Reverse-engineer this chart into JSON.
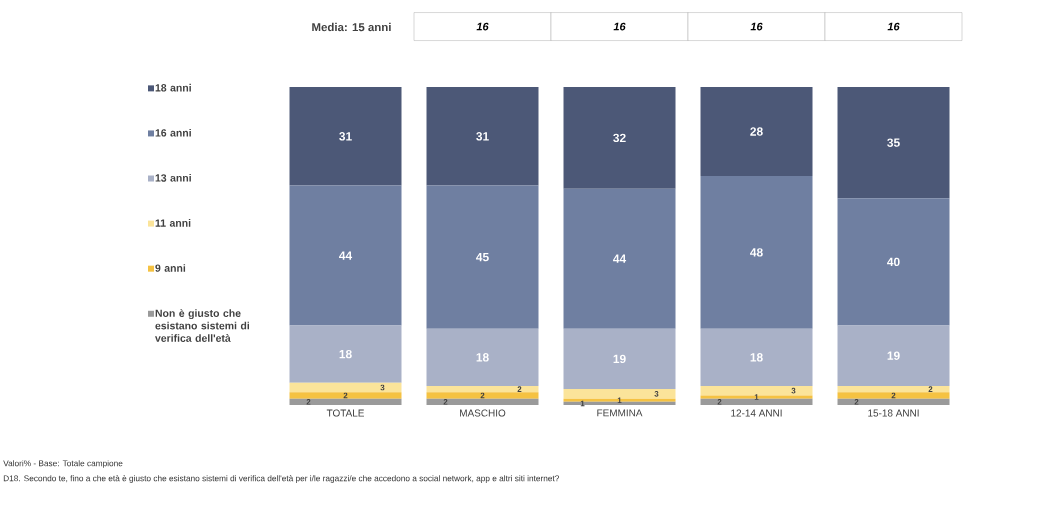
{
  "chart_data": {
    "type": "bar",
    "stacked": true,
    "legend": "left",
    "tick_labels": "x",
    "categories": [
      "TOTALE",
      "MASCHIO",
      "FEMMINA",
      "12-14 ANNI",
      "15-18 ANNI"
    ],
    "series": [
      {
        "name": "Non è giusto che esistano sistemi di verifica dell'età",
        "color": "#9a9a9a",
        "values": [
          2,
          2,
          1,
          2,
          2
        ],
        "value_labels": [
          "2",
          "2",
          "1",
          "2",
          "2"
        ]
      },
      {
        "name": "9 anni",
        "color": "#f5c242",
        "values": [
          2,
          2,
          1,
          1,
          2
        ],
        "value_labels": [
          "2",
          "2",
          "1",
          "1",
          "2"
        ]
      },
      {
        "name": "11 anni",
        "color": "#fbe49a",
        "values": [
          3,
          2,
          3,
          3,
          2
        ],
        "value_labels": [
          "3",
          "2",
          "3",
          "3",
          "2"
        ]
      },
      {
        "name": "13 anni",
        "color": "#a9b1c7",
        "values": [
          18,
          18,
          19,
          18,
          19
        ],
        "value_labels": [
          "18",
          "18",
          "19",
          "18",
          "19"
        ]
      },
      {
        "name": "16 anni",
        "color": "#6f7fa1",
        "values": [
          44,
          45,
          44,
          48,
          40
        ],
        "value_labels": [
          "44",
          "45",
          "44",
          "48",
          "40"
        ]
      },
      {
        "name": "18 anni",
        "color": "#4c5877",
        "values": [
          31,
          31,
          32,
          28,
          35
        ],
        "value_labels": [
          "31",
          "31",
          "32",
          "28",
          "35"
        ]
      }
    ],
    "annotations": [
      "Media: 15 anni",
      "16",
      "16",
      "16",
      "16",
      "Valori% - Base: Totale campione",
      "D18. Secondo te, fino a che età è giusto che esistano sistemi di verifica dell'età per i/le ragazzi/e che accedono a social network, app e altri siti internet?"
    ]
  }
}
